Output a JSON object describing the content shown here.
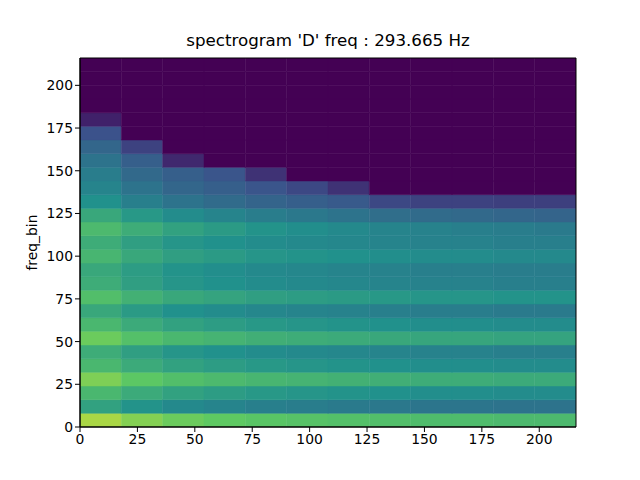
{
  "chart_data": {
    "type": "heatmap",
    "title": "spectrogram 'D' freq : 293.665 Hz",
    "y_label": "freq_bin",
    "xlim": [
      0,
      216
    ],
    "ylim": [
      0,
      216
    ],
    "xticks": [
      0,
      25,
      50,
      75,
      100,
      125,
      150,
      175,
      200
    ],
    "yticks": [
      0,
      25,
      50,
      75,
      100,
      125,
      150,
      175,
      200
    ],
    "grid": false,
    "zlim": [
      0,
      1
    ],
    "x_edges": [
      0,
      18,
      36,
      54,
      72,
      90,
      108,
      126,
      144,
      162,
      180,
      198,
      216
    ],
    "y_edges": [
      0,
      8,
      16,
      24,
      32,
      40,
      48,
      56,
      64,
      72,
      80,
      88,
      96,
      104,
      112,
      120,
      128,
      136,
      144,
      152,
      160,
      168,
      176,
      184,
      192,
      200,
      208,
      216
    ],
    "z": [
      [
        0.87,
        0.81,
        0.77,
        0.75,
        0.73,
        0.72,
        0.71,
        0.7,
        0.69,
        0.69,
        0.68,
        0.68
      ],
      [
        0.57,
        0.51,
        0.47,
        0.45,
        0.43,
        0.42,
        0.41,
        0.4,
        0.39,
        0.39,
        0.38,
        0.38
      ],
      [
        0.67,
        0.61,
        0.57,
        0.55,
        0.53,
        0.52,
        0.51,
        0.5,
        0.49,
        0.49,
        0.48,
        0.48
      ],
      [
        0.8,
        0.74,
        0.7,
        0.68,
        0.66,
        0.65,
        0.64,
        0.63,
        0.62,
        0.62,
        0.61,
        0.61
      ],
      [
        0.67,
        0.61,
        0.57,
        0.55,
        0.53,
        0.52,
        0.51,
        0.5,
        0.49,
        0.49,
        0.48,
        0.48
      ],
      [
        0.62,
        0.56,
        0.52,
        0.5,
        0.48,
        0.47,
        0.46,
        0.45,
        0.44,
        0.44,
        0.43,
        0.43
      ],
      [
        0.77,
        0.71,
        0.67,
        0.65,
        0.63,
        0.62,
        0.61,
        0.6,
        0.59,
        0.59,
        0.58,
        0.58
      ],
      [
        0.67,
        0.61,
        0.57,
        0.55,
        0.53,
        0.52,
        0.51,
        0.5,
        0.49,
        0.49,
        0.48,
        0.48
      ],
      [
        0.6,
        0.54,
        0.5,
        0.48,
        0.46,
        0.45,
        0.44,
        0.43,
        0.42,
        0.42,
        0.41,
        0.41
      ],
      [
        0.7,
        0.64,
        0.6,
        0.58,
        0.56,
        0.55,
        0.54,
        0.53,
        0.52,
        0.52,
        0.51,
        0.51
      ],
      [
        0.62,
        0.56,
        0.52,
        0.5,
        0.48,
        0.47,
        0.46,
        0.45,
        0.44,
        0.44,
        0.43,
        0.43
      ],
      [
        0.6,
        0.55,
        0.51,
        0.49,
        0.47,
        0.46,
        0.45,
        0.44,
        0.43,
        0.43,
        0.42,
        0.42
      ],
      [
        0.66,
        0.6,
        0.56,
        0.54,
        0.52,
        0.51,
        0.5,
        0.49,
        0.48,
        0.48,
        0.47,
        0.47
      ],
      [
        0.62,
        0.56,
        0.52,
        0.5,
        0.48,
        0.47,
        0.46,
        0.45,
        0.44,
        0.44,
        0.43,
        0.43
      ],
      [
        0.68,
        0.62,
        0.57,
        0.54,
        0.51,
        0.49,
        0.47,
        0.45,
        0.44,
        0.43,
        0.42,
        0.41
      ],
      [
        0.6,
        0.53,
        0.48,
        0.45,
        0.42,
        0.4,
        0.38,
        0.36,
        0.35,
        0.34,
        0.33,
        0.32
      ],
      [
        0.5,
        0.43,
        0.38,
        0.35,
        0.32,
        0.3,
        0.28,
        0.22,
        0.2,
        0.2,
        0.19,
        0.19
      ],
      [
        0.45,
        0.38,
        0.33,
        0.3,
        0.26,
        0.22,
        0.15,
        0,
        0,
        0,
        0,
        0
      ],
      [
        0.42,
        0.34,
        0.3,
        0.26,
        0.15,
        0,
        0,
        0,
        0,
        0,
        0,
        0
      ],
      [
        0.38,
        0.3,
        0.12,
        0,
        0,
        0,
        0,
        0,
        0,
        0,
        0,
        0
      ],
      [
        0.33,
        0.2,
        0,
        0,
        0,
        0,
        0,
        0,
        0,
        0,
        0,
        0
      ],
      [
        0.25,
        0,
        0,
        0,
        0,
        0,
        0,
        0,
        0,
        0,
        0,
        0
      ],
      [
        0.1,
        0,
        0,
        0,
        0,
        0,
        0,
        0,
        0,
        0,
        0,
        0
      ],
      [
        0,
        0,
        0,
        0,
        0,
        0,
        0,
        0,
        0,
        0,
        0,
        0
      ],
      [
        0,
        0,
        0,
        0,
        0,
        0,
        0,
        0,
        0,
        0,
        0,
        0
      ],
      [
        0,
        0,
        0,
        0,
        0,
        0,
        0,
        0,
        0,
        0,
        0,
        0
      ],
      [
        0,
        0,
        0,
        0,
        0,
        0,
        0,
        0,
        0,
        0,
        0,
        0
      ]
    ]
  }
}
